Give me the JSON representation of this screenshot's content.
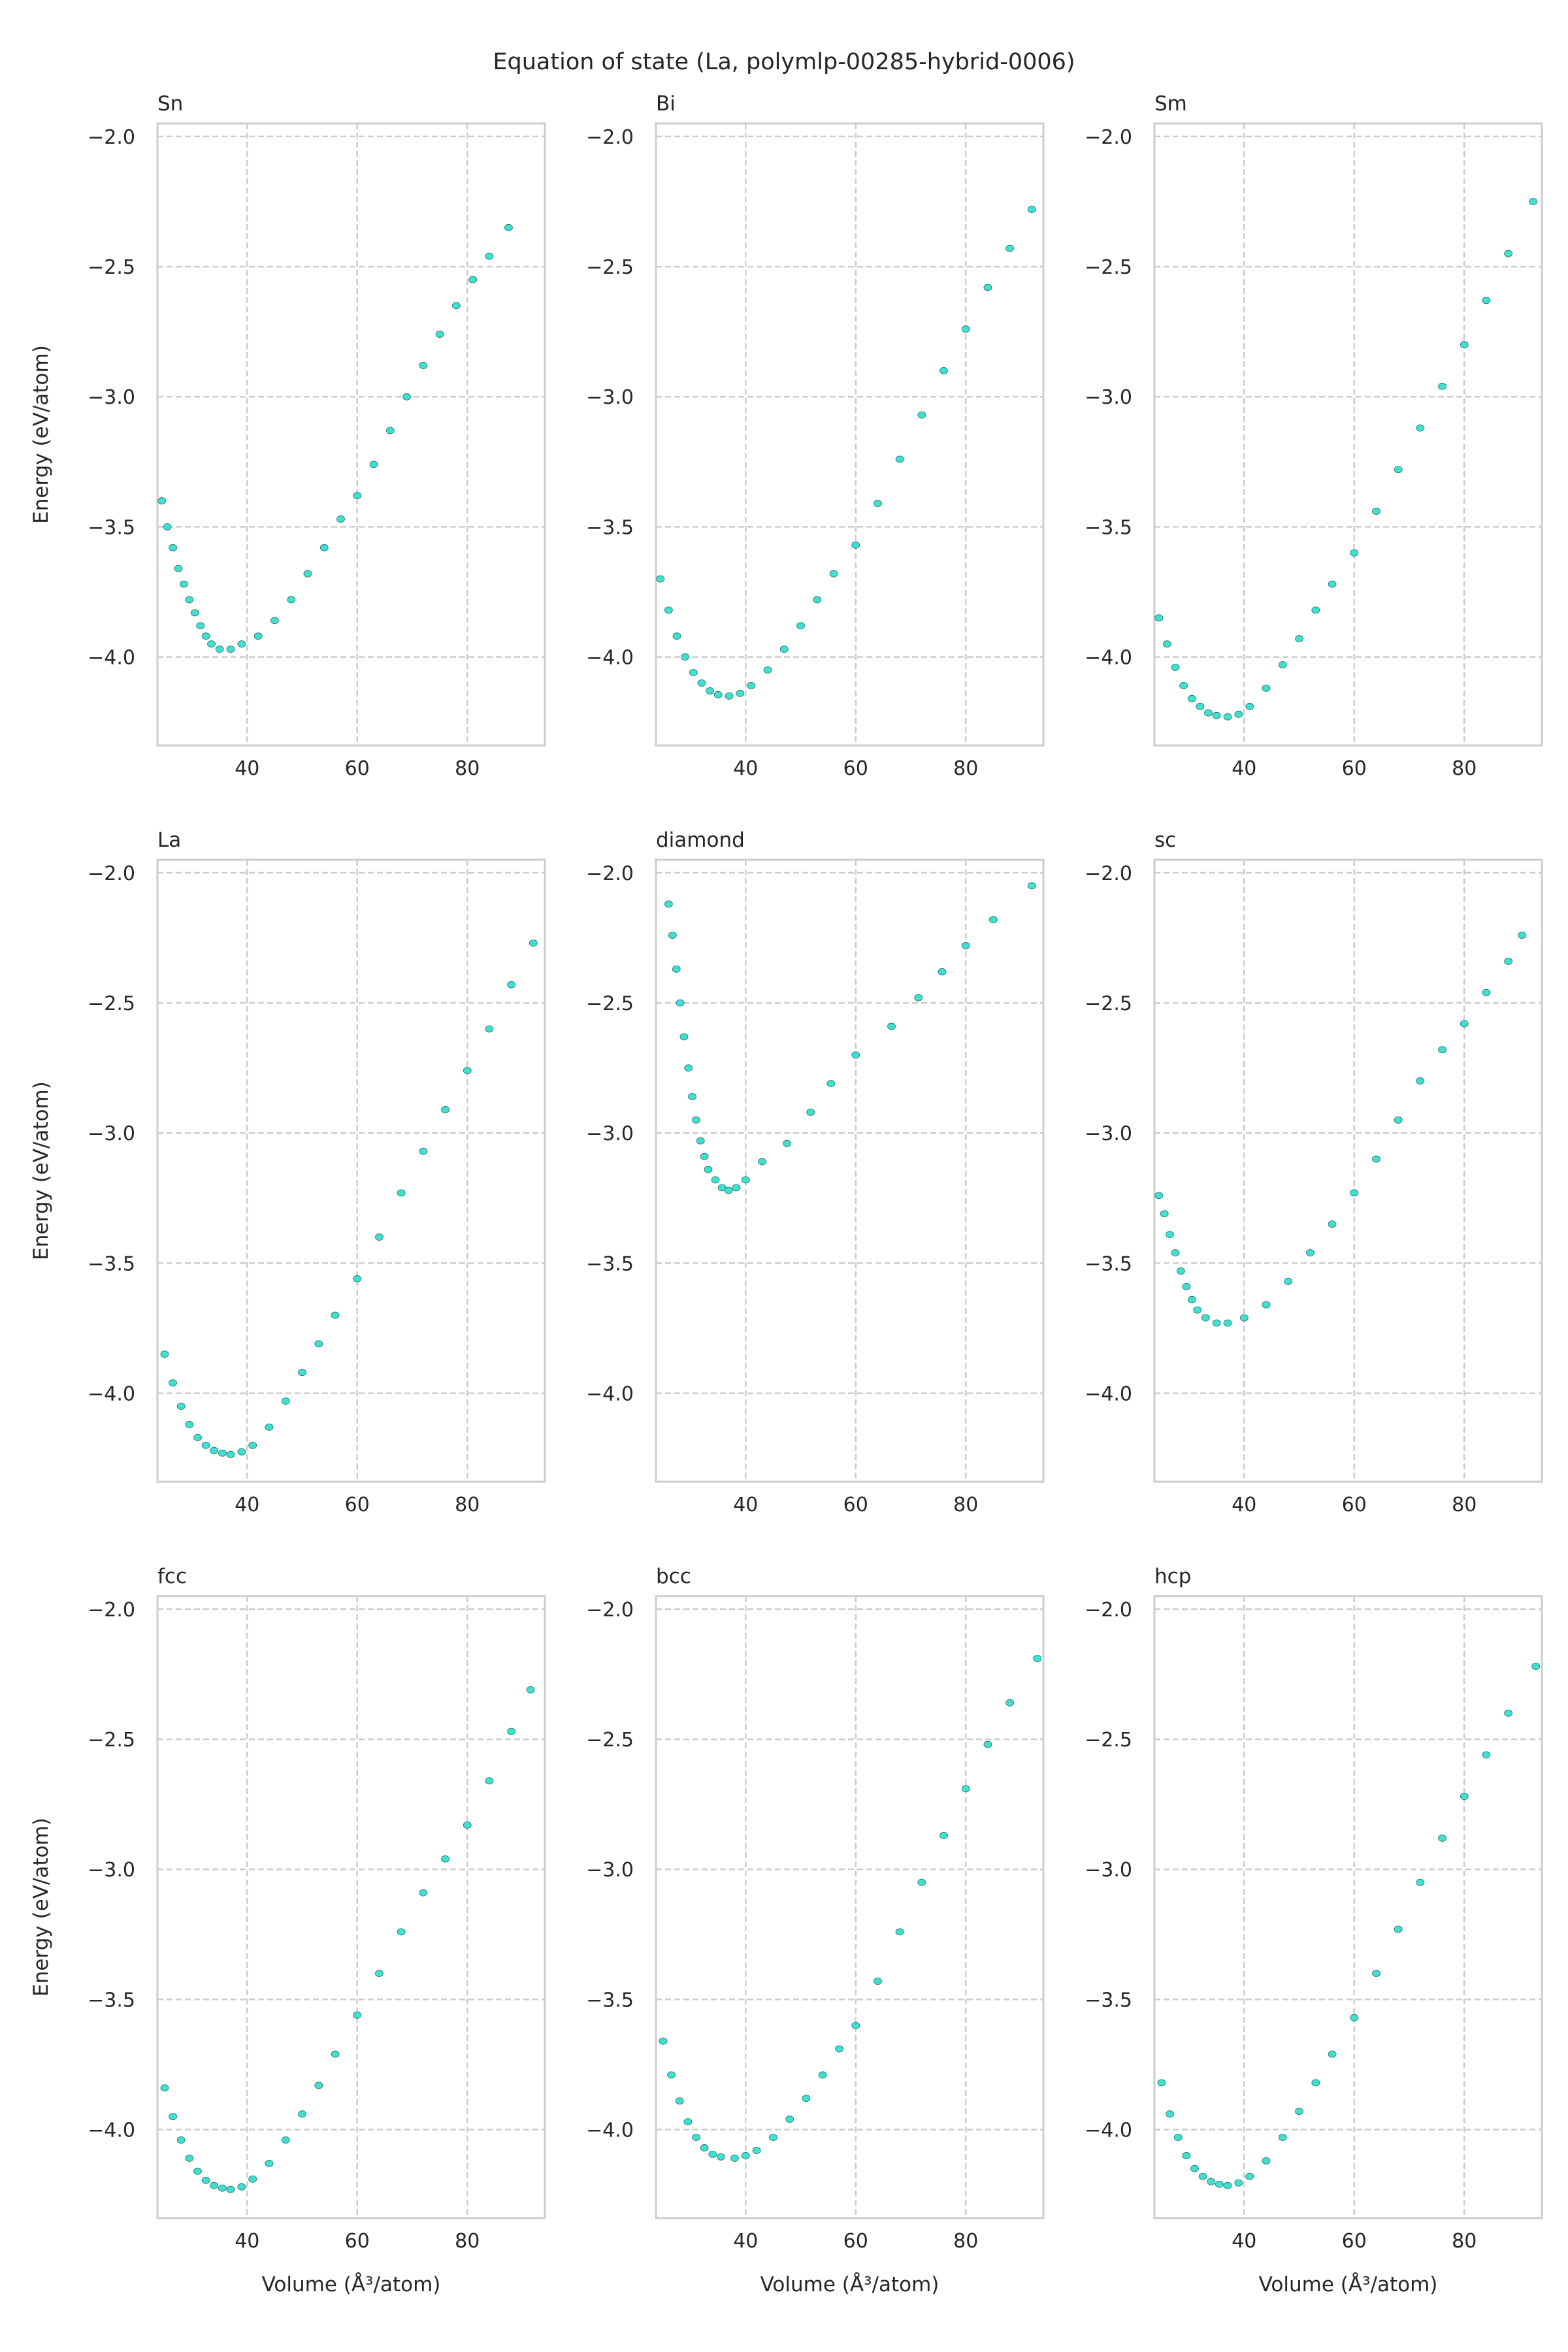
{
  "chart_data": {
    "type": "scatter",
    "title": "Equation of state (La, polymlp-00285-hybrid-0006)",
    "xlabel": "Volume (Å³/atom)",
    "ylabel": "Energy (eV/atom)",
    "xlim": [
      23.7,
      94.1
    ],
    "ylim": [
      -4.34,
      -1.95
    ],
    "xticks": [
      40,
      60,
      80
    ],
    "xtick_labels": [
      "40",
      "60",
      "80"
    ],
    "yticks": [
      -2.0,
      -2.5,
      -3.0,
      -3.5,
      -4.0
    ],
    "ytick_labels": [
      "−2.0",
      "−2.5",
      "−3.0",
      "−3.5",
      "−4.0"
    ],
    "grid": true,
    "marker_color": "#40E0D0",
    "marker_edge": "#1f6f68",
    "panels": [
      {
        "title": "Sn",
        "x": [
          24.5,
          25.5,
          26.5,
          27.5,
          28.5,
          29.5,
          30.5,
          31.5,
          32.5,
          33.5,
          35,
          37,
          39,
          42,
          45,
          48,
          51,
          54,
          57,
          60,
          63,
          66,
          69,
          72,
          75,
          78,
          81,
          84,
          87.5
        ],
        "y": [
          -3.4,
          -3.5,
          -3.58,
          -3.66,
          -3.72,
          -3.78,
          -3.83,
          -3.88,
          -3.92,
          -3.95,
          -3.97,
          -3.97,
          -3.95,
          -3.92,
          -3.86,
          -3.78,
          -3.68,
          -3.58,
          -3.47,
          -3.38,
          -3.26,
          -3.13,
          -3.0,
          -2.88,
          -2.76,
          -2.65,
          -2.55,
          -2.46,
          -2.35
        ]
      },
      {
        "title": "Bi",
        "x": [
          24.5,
          26,
          27.5,
          29,
          30.5,
          32,
          33.5,
          35,
          37,
          39,
          41,
          44,
          47,
          50,
          53,
          56,
          60,
          64,
          68,
          72,
          76,
          80,
          84,
          88,
          92
        ],
        "y": [
          -3.7,
          -3.82,
          -3.92,
          -4.0,
          -4.06,
          -4.1,
          -4.13,
          -4.145,
          -4.15,
          -4.14,
          -4.11,
          -4.05,
          -3.97,
          -3.88,
          -3.78,
          -3.68,
          -3.57,
          -3.41,
          -3.24,
          -3.07,
          -2.9,
          -2.74,
          -2.58,
          -2.43,
          -2.28
        ]
      },
      {
        "title": "Sm",
        "x": [
          24.5,
          26,
          27.5,
          29,
          30.5,
          32,
          33.5,
          35,
          37,
          39,
          41,
          44,
          47,
          50,
          53,
          56,
          60,
          64,
          68,
          72,
          76,
          80,
          84,
          88,
          92.5
        ],
        "y": [
          -3.85,
          -3.95,
          -4.04,
          -4.11,
          -4.16,
          -4.19,
          -4.215,
          -4.225,
          -4.23,
          -4.22,
          -4.19,
          -4.12,
          -4.03,
          -3.93,
          -3.82,
          -3.72,
          -3.6,
          -3.44,
          -3.28,
          -3.12,
          -2.96,
          -2.8,
          -2.63,
          -2.45,
          -2.25
        ]
      },
      {
        "title": "La",
        "x": [
          25,
          26.5,
          28,
          29.5,
          31,
          32.5,
          34,
          35.5,
          37,
          39,
          41,
          44,
          47,
          50,
          53,
          56,
          60,
          64,
          68,
          72,
          76,
          80,
          84,
          88,
          92
        ],
        "y": [
          -3.85,
          -3.96,
          -4.05,
          -4.12,
          -4.17,
          -4.2,
          -4.22,
          -4.23,
          -4.235,
          -4.225,
          -4.2,
          -4.13,
          -4.03,
          -3.92,
          -3.81,
          -3.7,
          -3.56,
          -3.4,
          -3.23,
          -3.07,
          -2.91,
          -2.76,
          -2.6,
          -2.43,
          -2.27
        ]
      },
      {
        "title": "diamond",
        "x": [
          26.0,
          26.7,
          27.4,
          28.1,
          28.8,
          29.6,
          30.3,
          31.0,
          31.8,
          32.5,
          33.2,
          34.5,
          35.7,
          36.9,
          38.3,
          40,
          43,
          47.5,
          51.8,
          55.5,
          60,
          66.5,
          71.4,
          75.7,
          80,
          85,
          92
        ],
        "y": [
          -2.12,
          -2.24,
          -2.37,
          -2.5,
          -2.63,
          -2.75,
          -2.86,
          -2.95,
          -3.03,
          -3.09,
          -3.14,
          -3.18,
          -3.21,
          -3.22,
          -3.21,
          -3.18,
          -3.11,
          -3.04,
          -2.92,
          -2.81,
          -2.7,
          -2.59,
          -2.48,
          -2.38,
          -2.28,
          -2.18,
          -2.05
        ]
      },
      {
        "title": "sc",
        "x": [
          24.5,
          25.5,
          26.5,
          27.5,
          28.5,
          29.5,
          30.5,
          31.5,
          33,
          35,
          37,
          40,
          44,
          48,
          52,
          56,
          60,
          64,
          68,
          72,
          76,
          80,
          84,
          88,
          90.5
        ],
        "y": [
          -3.24,
          -3.31,
          -3.39,
          -3.46,
          -3.53,
          -3.59,
          -3.64,
          -3.68,
          -3.71,
          -3.73,
          -3.73,
          -3.71,
          -3.66,
          -3.57,
          -3.46,
          -3.35,
          -3.23,
          -3.1,
          -2.95,
          -2.8,
          -2.68,
          -2.58,
          -2.46,
          -2.34,
          -2.24
        ]
      },
      {
        "title": "fcc",
        "x": [
          25,
          26.5,
          28,
          29.5,
          31,
          32.5,
          34,
          35.5,
          37,
          39,
          41,
          44,
          47,
          50,
          53,
          56,
          60,
          64,
          68,
          72,
          76,
          80,
          84,
          88,
          91.5
        ],
        "y": [
          -3.84,
          -3.95,
          -4.04,
          -4.11,
          -4.16,
          -4.195,
          -4.215,
          -4.225,
          -4.23,
          -4.22,
          -4.19,
          -4.13,
          -4.04,
          -3.94,
          -3.83,
          -3.71,
          -3.56,
          -3.4,
          -3.24,
          -3.09,
          -2.96,
          -2.83,
          -2.66,
          -2.47,
          -2.31
        ]
      },
      {
        "title": "bcc",
        "x": [
          25,
          26.5,
          28,
          29.5,
          31,
          32.5,
          34,
          35.5,
          38,
          40,
          42,
          45,
          48,
          51,
          54,
          57,
          60,
          64,
          68,
          72,
          76,
          80,
          84,
          88,
          93
        ],
        "y": [
          -3.66,
          -3.79,
          -3.89,
          -3.97,
          -4.03,
          -4.07,
          -4.095,
          -4.105,
          -4.11,
          -4.1,
          -4.08,
          -4.03,
          -3.96,
          -3.88,
          -3.79,
          -3.69,
          -3.6,
          -3.43,
          -3.24,
          -3.05,
          -2.87,
          -2.69,
          -2.52,
          -2.36,
          -2.19
        ]
      },
      {
        "title": "hcp",
        "x": [
          25,
          26.5,
          28,
          29.5,
          31,
          32.5,
          34,
          35.5,
          37,
          39,
          41,
          44,
          47,
          50,
          53,
          56,
          60,
          64,
          68,
          72,
          76,
          80,
          84,
          88,
          93
        ],
        "y": [
          -3.82,
          -3.94,
          -4.03,
          -4.1,
          -4.15,
          -4.18,
          -4.2,
          -4.21,
          -4.215,
          -4.205,
          -4.18,
          -4.12,
          -4.03,
          -3.93,
          -3.82,
          -3.71,
          -3.57,
          -3.4,
          -3.23,
          -3.05,
          -2.88,
          -2.72,
          -2.56,
          -2.4,
          -2.22
        ]
      }
    ]
  }
}
